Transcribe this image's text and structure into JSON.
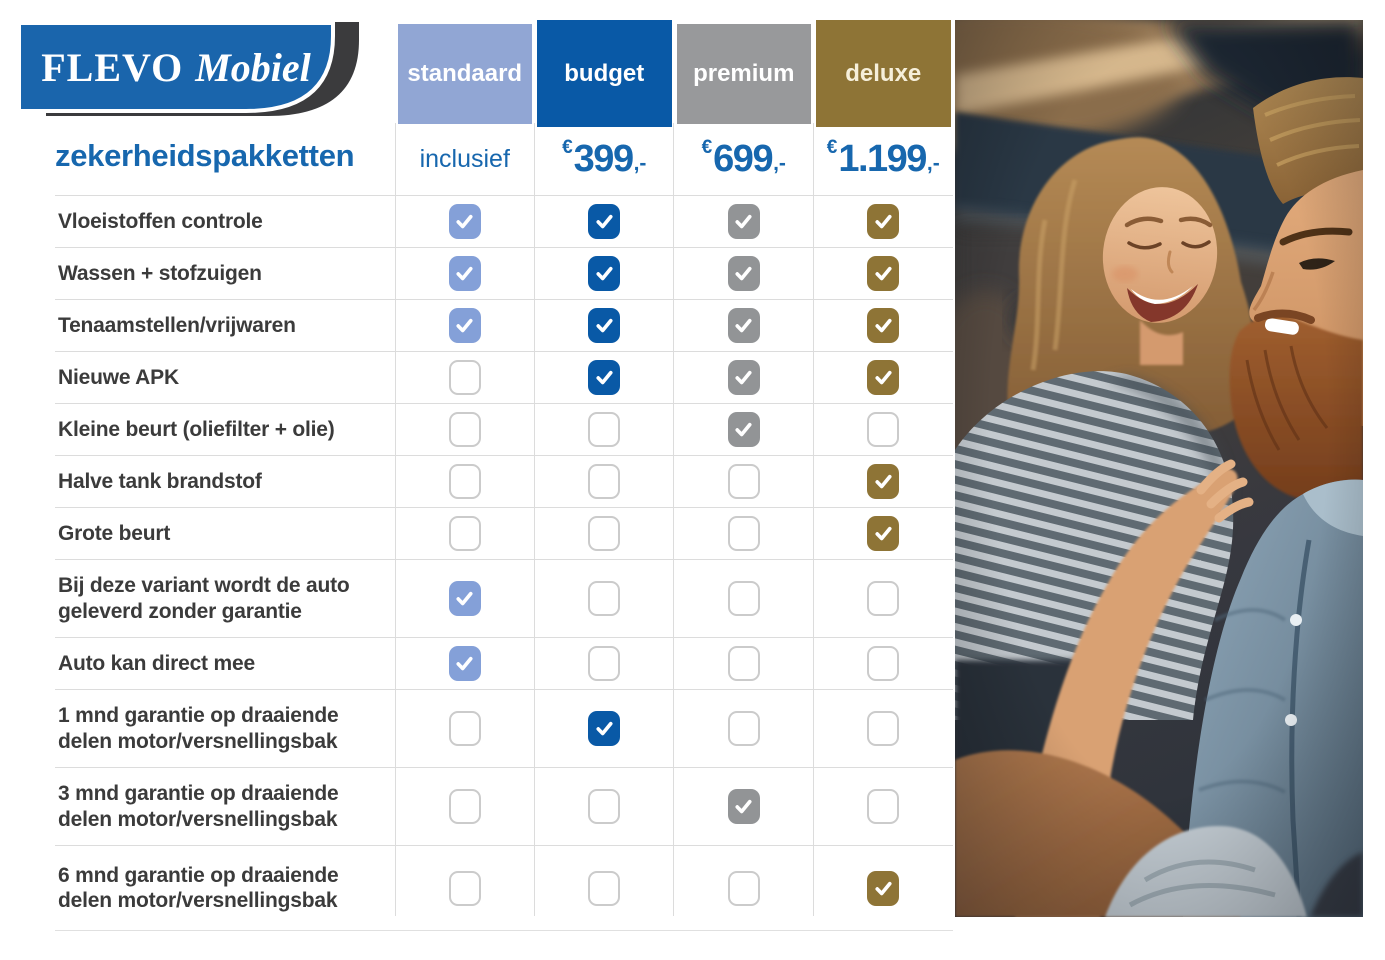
{
  "brand": {
    "primary": "FLEVO",
    "secondary": "Mobiel",
    "box_color": "#1A65AC",
    "swoosh_color": "#3B3B3D"
  },
  "page_title": "zekerheidspakketten",
  "accent_color": "#1767AE",
  "photo": {
    "name": "couple-in-car"
  },
  "table": {
    "columns": [
      {
        "id": "standaard",
        "label": "standaard",
        "header_bg": "#91A6D4",
        "check_bg": "#84A0D8",
        "header_text": "#FFFFFF",
        "tall": false,
        "price": {
          "type": "text",
          "text": "inclusief"
        }
      },
      {
        "id": "budget",
        "label": "budget",
        "header_bg": "#0959A6",
        "check_bg": "#0959A6",
        "header_text": "#FFFFFF",
        "tall": true,
        "price": {
          "type": "amount",
          "currency": "€",
          "amount": "399",
          "suffix": ",-"
        }
      },
      {
        "id": "premium",
        "label": "premium",
        "header_bg": "#98999B",
        "check_bg": "#929496",
        "header_text": "#FFFFFF",
        "tall": false,
        "price": {
          "type": "amount",
          "currency": "€",
          "amount": "699",
          "suffix": ",-"
        }
      },
      {
        "id": "deluxe",
        "label": "deluxe",
        "header_bg": "#8E7436",
        "check_bg": "#8E7436",
        "header_text": "#F6EFDA",
        "tall": true,
        "price": {
          "type": "amount",
          "currency": "€",
          "amount": "1.199",
          "suffix": ",-"
        }
      }
    ],
    "rows": [
      {
        "label": "Vloeistoffen controle",
        "two_line": false,
        "checks": [
          true,
          true,
          true,
          true
        ]
      },
      {
        "label": "Wassen + stofzuigen",
        "two_line": false,
        "checks": [
          true,
          true,
          true,
          true
        ]
      },
      {
        "label": "Tenaamstellen/vrijwaren",
        "two_line": false,
        "checks": [
          true,
          true,
          true,
          true
        ]
      },
      {
        "label": "Nieuwe APK",
        "two_line": false,
        "checks": [
          false,
          true,
          true,
          true
        ]
      },
      {
        "label": "Kleine beurt (oliefilter + olie)",
        "two_line": false,
        "checks": [
          false,
          false,
          true,
          false
        ]
      },
      {
        "label": "Halve tank brandstof",
        "two_line": false,
        "checks": [
          false,
          false,
          false,
          true
        ]
      },
      {
        "label": "Grote beurt",
        "two_line": false,
        "checks": [
          false,
          false,
          false,
          true
        ]
      },
      {
        "label": "Bij deze variant wordt de auto geleverd zonder garantie",
        "two_line": true,
        "checks": [
          true,
          false,
          false,
          false
        ]
      },
      {
        "label": "Auto kan direct mee",
        "two_line": false,
        "checks": [
          true,
          false,
          false,
          false
        ]
      },
      {
        "label": "1 mnd garantie op draaiende delen motor/versnellingsbak",
        "two_line": true,
        "checks": [
          false,
          true,
          false,
          false
        ]
      },
      {
        "label": "3 mnd garantie op draaiende delen motor/versnellingsbak",
        "two_line": true,
        "checks": [
          false,
          false,
          true,
          false
        ]
      },
      {
        "label": "6 mnd garantie op draaiende delen motor/versnellingsbak",
        "two_line": true,
        "checks": [
          false,
          false,
          false,
          true
        ]
      }
    ]
  }
}
